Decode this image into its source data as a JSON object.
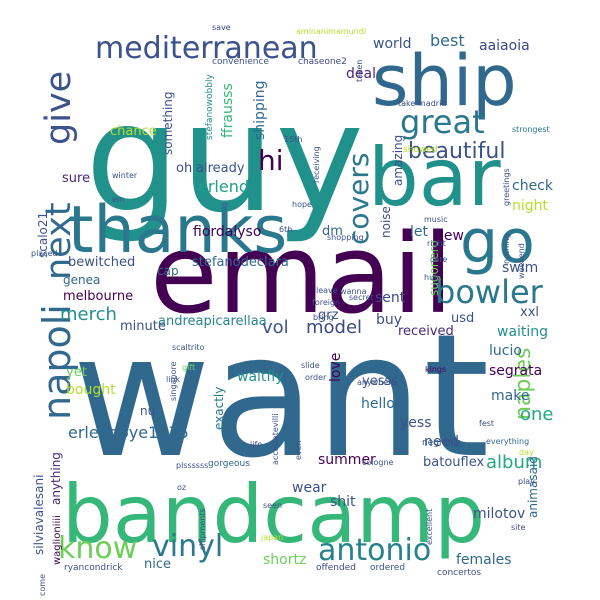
{
  "words": [
    {
      "text": "want",
      "color": "#31688e",
      "rot": 0
    },
    {
      "text": "guy",
      "color": "#21918c",
      "rot": 0
    },
    {
      "text": "email",
      "color": "#440154",
      "rot": 0
    },
    {
      "text": "bandcamp",
      "color": "#35b779",
      "rot": 0
    },
    {
      "text": "ship",
      "color": "#31688e",
      "rot": 0
    },
    {
      "text": "bar",
      "color": "#21918c",
      "rot": 0
    },
    {
      "text": "thanks",
      "color": "#2a788e",
      "rot": 0
    },
    {
      "text": "go",
      "color": "#2a788e",
      "rot": 0
    },
    {
      "text": "mediterranean",
      "color": "#3b528b",
      "rot": 0
    },
    {
      "text": "give",
      "color": "#3b528b",
      "rot": -90
    },
    {
      "text": "next",
      "color": "#31688e",
      "rot": -90
    },
    {
      "text": "napoli",
      "color": "#31688e",
      "rot": -90
    },
    {
      "text": "great",
      "color": "#2a788e",
      "rot": 0
    },
    {
      "text": "bowler",
      "color": "#2a788e",
      "rot": 0
    },
    {
      "text": "covers",
      "color": "#2a788e",
      "rot": -90
    },
    {
      "text": "beautiful",
      "color": "#3b528b",
      "rot": 0
    },
    {
      "text": "hi",
      "color": "#440154",
      "rot": 0
    },
    {
      "text": "know",
      "color": "#6ece58",
      "rot": 0
    },
    {
      "text": "vinyl",
      "color": "#2a788e",
      "rot": 0
    },
    {
      "text": "antonio",
      "color": "#26828e",
      "rot": 0
    },
    {
      "text": "merch",
      "color": "#21918c",
      "rot": 0
    },
    {
      "text": "erlend",
      "color": "#1f9e89",
      "rot": 0
    },
    {
      "text": "naples",
      "color": "#6ece58",
      "rot": -90
    },
    {
      "text": "model",
      "color": "#3e4989",
      "rot": 0
    },
    {
      "text": "album",
      "color": "#22a884",
      "rot": 0
    },
    {
      "text": "erlendoye1975",
      "color": "#31688e",
      "rot": 0
    },
    {
      "text": "vol",
      "color": "#3b528b",
      "rot": 0
    },
    {
      "text": "one",
      "color": "#22a884",
      "rot": 0
    },
    {
      "text": "best",
      "color": "#31688e",
      "rot": 0
    },
    {
      "text": "world",
      "color": "#3b528b",
      "rot": 0
    },
    {
      "text": "aaiaoia",
      "color": "#3e4989",
      "rot": 0
    },
    {
      "text": "deal",
      "color": "#482878",
      "rot": 0
    },
    {
      "text": "chance",
      "color": "#b5de2b",
      "rot": 0
    },
    {
      "text": "something",
      "color": "#3b528b",
      "rot": -90
    },
    {
      "text": "ffrausss",
      "color": "#35b779",
      "rot": -90
    },
    {
      "text": "shipping",
      "color": "#31688e",
      "rot": -90
    },
    {
      "text": "stefanowobbly",
      "color": "#21918c",
      "rot": -90
    },
    {
      "text": "convenience",
      "color": "#3b528b",
      "rot": 0
    },
    {
      "text": "chaseone2",
      "color": "#3e4989",
      "rot": 0
    },
    {
      "text": "aminanimamundi",
      "color": "#b5de2b",
      "rot": 0
    },
    {
      "text": "save",
      "color": "#3e4989",
      "rot": 0
    },
    {
      "text": "taken",
      "color": "#3e4989",
      "rot": -90
    },
    {
      "text": "take",
      "color": "#3e4989",
      "rot": 0
    },
    {
      "text": "madrid",
      "color": "#3e4989",
      "rot": 0
    },
    {
      "text": "strongest",
      "color": "#2a788e",
      "rot": 0
    },
    {
      "text": "showed",
      "color": "#b5de2b",
      "rot": 0
    },
    {
      "text": "oh",
      "color": "#3e4989",
      "rot": 0
    },
    {
      "text": "already",
      "color": "#3b528b",
      "rot": 0
    },
    {
      "text": "fiordalyso",
      "color": "#440154",
      "rot": 0
    },
    {
      "text": "stefanodeclara",
      "color": "#31688e",
      "rot": 0
    },
    {
      "text": "bewitched",
      "color": "#3b528b",
      "rot": 0
    },
    {
      "text": "genea",
      "color": "#31688e",
      "rot": 0
    },
    {
      "text": "cap",
      "color": "#31688e",
      "rot": 0
    },
    {
      "text": "melbourne",
      "color": "#440154",
      "rot": 0
    },
    {
      "text": "scalo21",
      "color": "#3b528b",
      "rot": -90
    },
    {
      "text": "sure",
      "color": "#482878",
      "rot": 0
    },
    {
      "text": "dm",
      "color": "#31688e",
      "rot": 0
    },
    {
      "text": "check",
      "color": "#31688e",
      "rot": 0
    },
    {
      "text": "night",
      "color": "#b5de2b",
      "rot": 0
    },
    {
      "text": "new",
      "color": "#440154",
      "rot": 0
    },
    {
      "text": "let",
      "color": "#31688e",
      "rot": 0
    },
    {
      "text": "noise",
      "color": "#3b528b",
      "rot": -90
    },
    {
      "text": "amazing",
      "color": "#3b528b",
      "rot": -90
    },
    {
      "text": "sugonero",
      "color": "#6ece58",
      "rot": -90
    },
    {
      "text": "swim",
      "color": "#3b528b",
      "rot": 0
    },
    {
      "text": "grz",
      "color": "#3b528b",
      "rot": 0
    },
    {
      "text": "andreapicarellaa",
      "color": "#26828e",
      "rot": 0
    },
    {
      "text": "minute",
      "color": "#3b528b",
      "rot": 0
    },
    {
      "text": "xxl",
      "color": "#3b528b",
      "rot": 0
    },
    {
      "text": "usd",
      "color": "#3b528b",
      "rot": 0
    },
    {
      "text": "received",
      "color": "#482878",
      "rot": 0
    },
    {
      "text": "waiting",
      "color": "#21918c",
      "rot": 0
    },
    {
      "text": "waitfly",
      "color": "#21918c",
      "rot": 0
    },
    {
      "text": "buy",
      "color": "#3b528b",
      "rot": 0
    },
    {
      "text": "sent",
      "color": "#3e4989",
      "rot": 0
    },
    {
      "text": "yet",
      "color": "#6ece58",
      "rot": 0
    },
    {
      "text": "bought",
      "color": "#b5de2b",
      "rot": 0
    },
    {
      "text": "love",
      "color": "#440154",
      "rot": -90
    },
    {
      "text": "yesss",
      "color": "#3b528b",
      "rot": 0
    },
    {
      "text": "hello",
      "color": "#31688e",
      "rot": 0
    },
    {
      "text": "claradugh",
      "color": "#31688e",
      "rot": -90
    },
    {
      "text": "lucio",
      "color": "#31688e",
      "rot": 0
    },
    {
      "text": "segrata",
      "color": "#440154",
      "rot": 0
    },
    {
      "text": "make",
      "color": "#31688e",
      "rot": 0
    },
    {
      "text": "exactly",
      "color": "#2a788e",
      "rot": -90
    },
    {
      "text": "nu",
      "color": "#3b528b",
      "rot": 0
    },
    {
      "text": "yess",
      "color": "#3b528b",
      "rot": 0
    },
    {
      "text": "need",
      "color": "#3b528b",
      "rot": 0
    },
    {
      "text": "animasaid",
      "color": "#31688e",
      "rot": -90
    },
    {
      "text": "batouflex",
      "color": "#3b528b",
      "rot": 0
    },
    {
      "text": "summer",
      "color": "#440154",
      "rot": 0
    },
    {
      "text": "wear",
      "color": "#3b528b",
      "rot": 0
    },
    {
      "text": "shit",
      "color": "#3b528b",
      "rot": 0
    },
    {
      "text": "shortz",
      "color": "#6ece58",
      "rot": 0
    },
    {
      "text": "milotov",
      "color": "#3b528b",
      "rot": 0
    },
    {
      "text": "females",
      "color": "#31688e",
      "rot": 0
    },
    {
      "text": "silviavalesani",
      "color": "#3b528b",
      "rot": -90
    },
    {
      "text": "anything",
      "color": "#482878",
      "rot": -90
    },
    {
      "text": "waglioniiii",
      "color": "#440154",
      "rot": -90
    },
    {
      "text": "nice",
      "color": "#31688e",
      "rot": 0
    },
    {
      "text": "ryancondrick",
      "color": "#3b528b",
      "rot": 0
    },
    {
      "text": "offended",
      "color": "#3e4989",
      "rot": 0
    },
    {
      "text": "ordered",
      "color": "#3b528b",
      "rot": 0
    },
    {
      "text": "concertos",
      "color": "#3b528b",
      "rot": 0
    },
    {
      "text": "excellent",
      "color": "#3b528b",
      "rot": -90
    },
    {
      "text": "site",
      "color": "#3e4989",
      "rot": 0
    },
    {
      "text": "play",
      "color": "#3e4989",
      "rot": 0
    },
    {
      "text": "day",
      "color": "#b5de2b",
      "rot": 0
    },
    {
      "text": "everything",
      "color": "#31688e",
      "rot": 0
    },
    {
      "text": "fest",
      "color": "#3b528b",
      "rot": 0
    },
    {
      "text": "kings",
      "color": "#440154",
      "rot": 0
    },
    {
      "text": "negronis",
      "color": "#3b528b",
      "rot": 0
    },
    {
      "text": "cologne",
      "color": "#3b528b",
      "rot": 0
    },
    {
      "text": "gorgeous",
      "color": "#31688e",
      "rot": 0
    },
    {
      "text": "seen",
      "color": "#3b528b",
      "rot": 0
    },
    {
      "text": "shipments",
      "color": "#3b528b",
      "rot": -90
    },
    {
      "text": "japan",
      "color": "#b5de2b",
      "rot": 0
    },
    {
      "text": "come",
      "color": "#3b528b",
      "rot": -90
    },
    {
      "text": "oz",
      "color": "#3b528b",
      "rot": 0
    },
    {
      "text": "plssssss",
      "color": "#3b528b",
      "rot": 0
    },
    {
      "text": "life",
      "color": "#3b528b",
      "rot": 0
    },
    {
      "text": "accattatevilli",
      "color": "#3b528b",
      "rot": -90
    },
    {
      "text": "even",
      "color": "#3b528b",
      "rot": -90
    },
    {
      "text": "anywhere",
      "color": "#3b528b",
      "rot": 0
    },
    {
      "text": "singapore",
      "color": "#3b528b",
      "rot": -90
    },
    {
      "text": "scaltrito",
      "color": "#3b528b",
      "rot": 0
    },
    {
      "text": "gift",
      "color": "#6ece58",
      "rot": 0
    },
    {
      "text": "link",
      "color": "#3b528b",
      "rot": 0
    },
    {
      "text": "slide",
      "color": "#3b528b",
      "rot": 0
    },
    {
      "text": "order",
      "color": "#3b528b",
      "rot": 0
    },
    {
      "text": "foreign",
      "color": "#3b528b",
      "rot": 0
    },
    {
      "text": "bring",
      "color": "#3b528b",
      "rot": 0
    },
    {
      "text": "wanna",
      "color": "#3b528b",
      "rot": 0
    },
    {
      "text": "secret",
      "color": "#3b528b",
      "rot": 0
    },
    {
      "text": "leave",
      "color": "#3b528b",
      "rot": 0
    },
    {
      "text": "care",
      "color": "#3b528b",
      "rot": 0
    },
    {
      "text": "huh",
      "color": "#3b528b",
      "rot": 0
    },
    {
      "text": "music",
      "color": "#3b528b",
      "rot": 0
    },
    {
      "text": "right",
      "color": "#3b528b",
      "rot": 0
    },
    {
      "text": "nothing",
      "color": "#3b528b",
      "rot": -90
    },
    {
      "text": "weekend",
      "color": "#3b528b",
      "rot": -90
    },
    {
      "text": "greetings",
      "color": "#3b528b",
      "rot": -90
    },
    {
      "text": "shopping",
      "color": "#3b528b",
      "rot": 0
    },
    {
      "text": "hope",
      "color": "#3b528b",
      "rot": 0
    },
    {
      "text": "6th",
      "color": "#3b528b",
      "rot": 0
    },
    {
      "text": "receiving",
      "color": "#3b528b",
      "rot": -90
    },
    {
      "text": "placed",
      "color": "#3b528b",
      "rot": 0
    },
    {
      "text": "em",
      "color": "#3b528b",
      "rot": 0
    },
    {
      "text": "winter",
      "color": "#3b528b",
      "rot": 0
    },
    {
      "text": "15th",
      "color": "#3b528b",
      "rot": 0
    }
  ]
}
